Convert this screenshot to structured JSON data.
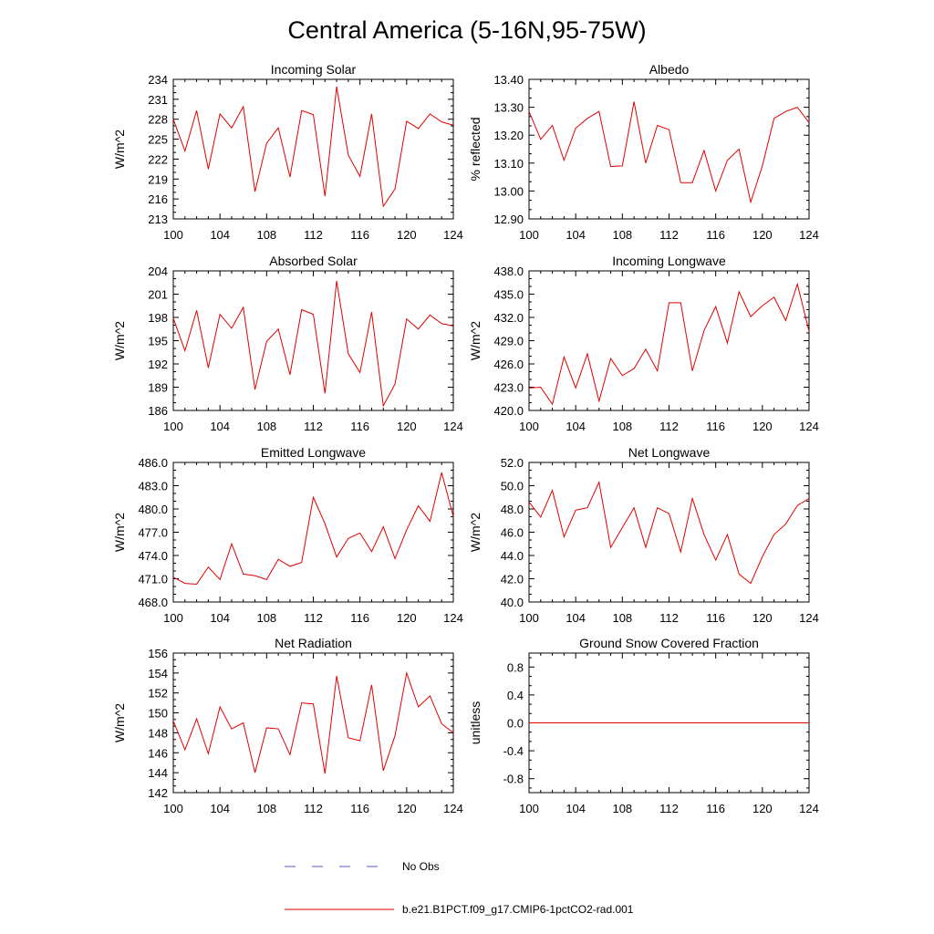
{
  "figure": {
    "title": "Central America (5-16N,95-75W)",
    "legend": {
      "entries": [
        {
          "label": "No Obs",
          "color": "#5a5ac8",
          "style": "dashed"
        },
        {
          "label": "b.e21.B1PCT.f09_g17.CMIP6-1pctCO2-rad.001",
          "color": "#e00000",
          "style": "solid"
        }
      ]
    }
  },
  "chart_data": [
    {
      "type": "line",
      "title": "Incoming Solar",
      "ylabel": "W/m^2",
      "xlabel": "",
      "xlim": [
        100,
        124
      ],
      "ylim": [
        213,
        234
      ],
      "xticks": [
        "100",
        "104",
        "108",
        "112",
        "116",
        "120",
        "124"
      ],
      "yticks": [
        "213",
        "216",
        "219",
        "222",
        "225",
        "228",
        "231",
        "234"
      ],
      "series": [
        {
          "color": "#e00000",
          "x": [
            100,
            101,
            102,
            103,
            104,
            105,
            106,
            107,
            108,
            109,
            110,
            111,
            112,
            113,
            114,
            115,
            116,
            117,
            118,
            119,
            120,
            121,
            122,
            123,
            124
          ],
          "y": [
            228.0,
            223.2,
            229.3,
            220.5,
            228.8,
            226.7,
            229.9,
            217.1,
            224.4,
            226.7,
            219.3,
            229.3,
            228.7,
            216.4,
            232.9,
            222.6,
            219.4,
            228.8,
            214.9,
            217.5,
            227.7,
            226.6,
            228.8,
            227.6,
            227.1
          ]
        }
      ]
    },
    {
      "type": "line",
      "title": "Albedo",
      "ylabel": "% reflected",
      "xlabel": "",
      "xlim": [
        100,
        124
      ],
      "ylim": [
        12.9,
        13.4
      ],
      "xticks": [
        "100",
        "104",
        "108",
        "112",
        "116",
        "120",
        "124"
      ],
      "yticks": [
        "12.90",
        "13.00",
        "13.10",
        "13.20",
        "13.30",
        "13.40"
      ],
      "series": [
        {
          "color": "#e00000",
          "x": [
            100,
            101,
            102,
            103,
            104,
            105,
            106,
            107,
            108,
            109,
            110,
            111,
            112,
            113,
            114,
            115,
            116,
            117,
            118,
            119,
            120,
            121,
            122,
            123,
            124
          ],
          "y": [
            13.285,
            13.185,
            13.235,
            13.11,
            13.225,
            13.26,
            13.285,
            13.088,
            13.09,
            13.32,
            13.1,
            13.235,
            13.22,
            13.03,
            13.03,
            13.145,
            13.0,
            13.11,
            13.15,
            12.96,
            13.09,
            13.26,
            13.285,
            13.3,
            13.245
          ]
        }
      ]
    },
    {
      "type": "line",
      "title": "Absorbed Solar",
      "ylabel": "W/m^2",
      "xlabel": "",
      "xlim": [
        100,
        124
      ],
      "ylim": [
        186,
        204
      ],
      "xticks": [
        "100",
        "104",
        "108",
        "112",
        "116",
        "120",
        "124"
      ],
      "yticks": [
        "186",
        "189",
        "192",
        "195",
        "198",
        "201",
        "204"
      ],
      "series": [
        {
          "color": "#e00000",
          "x": [
            100,
            101,
            102,
            103,
            104,
            105,
            106,
            107,
            108,
            109,
            110,
            111,
            112,
            113,
            114,
            115,
            116,
            117,
            118,
            119,
            120,
            121,
            122,
            123,
            124
          ],
          "y": [
            197.9,
            193.7,
            198.9,
            191.5,
            198.4,
            196.6,
            199.3,
            188.7,
            194.9,
            196.5,
            190.6,
            199.0,
            198.4,
            188.2,
            202.7,
            193.3,
            190.9,
            198.7,
            186.6,
            189.4,
            197.8,
            196.5,
            198.3,
            197.2,
            196.9
          ]
        }
      ]
    },
    {
      "type": "line",
      "title": "Incoming Longwave",
      "ylabel": "W/m^2",
      "xlabel": "",
      "xlim": [
        100,
        124
      ],
      "ylim": [
        420,
        438
      ],
      "xticks": [
        "100",
        "104",
        "108",
        "112",
        "116",
        "120",
        "124"
      ],
      "yticks": [
        "420.0",
        "423.0",
        "426.0",
        "429.0",
        "432.0",
        "435.0",
        "438.0"
      ],
      "series": [
        {
          "color": "#e00000",
          "x": [
            100,
            101,
            102,
            103,
            104,
            105,
            106,
            107,
            108,
            109,
            110,
            111,
            112,
            113,
            114,
            115,
            116,
            117,
            118,
            119,
            120,
            121,
            122,
            123,
            124
          ],
          "y": [
            422.9,
            423.0,
            420.8,
            426.9,
            422.9,
            427.3,
            421.2,
            426.7,
            424.5,
            425.4,
            427.9,
            425.1,
            433.9,
            433.9,
            425.1,
            430.3,
            433.4,
            428.7,
            435.3,
            432.1,
            433.5,
            434.6,
            431.6,
            436.3,
            430.2
          ]
        }
      ]
    },
    {
      "type": "line",
      "title": "Emitted Longwave",
      "ylabel": "W/m^2",
      "xlabel": "",
      "xlim": [
        100,
        124
      ],
      "ylim": [
        468,
        486
      ],
      "xticks": [
        "100",
        "104",
        "108",
        "112",
        "116",
        "120",
        "124"
      ],
      "yticks": [
        "468.0",
        "471.0",
        "474.0",
        "477.0",
        "480.0",
        "483.0",
        "486.0"
      ],
      "series": [
        {
          "color": "#e00000",
          "x": [
            100,
            101,
            102,
            103,
            104,
            105,
            106,
            107,
            108,
            109,
            110,
            111,
            112,
            113,
            114,
            115,
            116,
            117,
            118,
            119,
            120,
            121,
            122,
            123,
            124
          ],
          "y": [
            471.2,
            470.4,
            470.3,
            472.5,
            470.9,
            475.5,
            471.6,
            471.4,
            470.9,
            473.5,
            472.6,
            473.1,
            481.5,
            478.1,
            473.8,
            476.2,
            476.9,
            474.5,
            477.7,
            473.6,
            477.3,
            480.4,
            478.4,
            484.7,
            479.0
          ]
        }
      ]
    },
    {
      "type": "line",
      "title": "Net Longwave",
      "ylabel": "W/m^2",
      "xlabel": "",
      "xlim": [
        100,
        124
      ],
      "ylim": [
        40,
        52
      ],
      "xticks": [
        "100",
        "104",
        "108",
        "112",
        "116",
        "120",
        "124"
      ],
      "yticks": [
        "40.0",
        "42.0",
        "44.0",
        "46.0",
        "48.0",
        "50.0",
        "52.0"
      ],
      "series": [
        {
          "color": "#e00000",
          "x": [
            100,
            101,
            102,
            103,
            104,
            105,
            106,
            107,
            108,
            109,
            110,
            111,
            112,
            113,
            114,
            115,
            116,
            117,
            118,
            119,
            120,
            121,
            122,
            123,
            124
          ],
          "y": [
            48.6,
            47.3,
            49.6,
            45.6,
            47.9,
            48.1,
            50.3,
            44.7,
            46.4,
            48.1,
            44.7,
            48.1,
            47.6,
            44.3,
            48.9,
            45.8,
            43.6,
            45.8,
            42.4,
            41.6,
            43.9,
            45.8,
            46.7,
            48.3,
            48.9
          ]
        }
      ]
    },
    {
      "type": "line",
      "title": "Net Radiation",
      "ylabel": "W/m^2",
      "xlabel": "",
      "xlim": [
        100,
        124
      ],
      "ylim": [
        142,
        156
      ],
      "xticks": [
        "100",
        "104",
        "108",
        "112",
        "116",
        "120",
        "124"
      ],
      "yticks": [
        "142",
        "144",
        "146",
        "148",
        "150",
        "152",
        "154",
        "156"
      ],
      "series": [
        {
          "color": "#e00000",
          "x": [
            100,
            101,
            102,
            103,
            104,
            105,
            106,
            107,
            108,
            109,
            110,
            111,
            112,
            113,
            114,
            115,
            116,
            117,
            118,
            119,
            120,
            121,
            122,
            123,
            124
          ],
          "y": [
            149.2,
            146.3,
            149.4,
            145.9,
            150.6,
            148.4,
            149.0,
            144.0,
            148.5,
            148.4,
            145.8,
            151.0,
            150.9,
            143.9,
            153.7,
            147.5,
            147.2,
            152.8,
            144.2,
            147.7,
            154.0,
            150.6,
            151.7,
            148.9,
            148.0
          ]
        }
      ]
    },
    {
      "type": "line",
      "title": "Ground Snow Covered Fraction",
      "ylabel": "unitless",
      "xlabel": "",
      "xlim": [
        100,
        124
      ],
      "ylim": [
        -1.0,
        1.0
      ],
      "xticks": [
        "100",
        "104",
        "108",
        "112",
        "116",
        "120",
        "124"
      ],
      "yticks": [
        "-0.8",
        "-0.4",
        "0.0",
        "0.4",
        "0.8"
      ],
      "yticks_at": [
        -0.8,
        -0.4,
        0.0,
        0.4,
        0.8
      ],
      "series": [
        {
          "color": "#e00000",
          "x": [
            100,
            124
          ],
          "y": [
            0.0,
            0.0
          ]
        }
      ]
    }
  ]
}
